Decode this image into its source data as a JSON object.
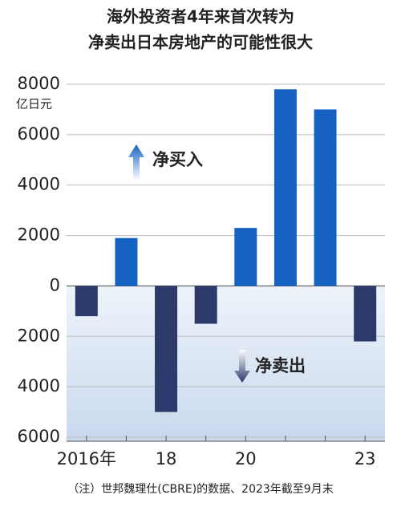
{
  "chart_data": {
    "type": "bar",
    "title": [
      "海外投资者4年来首次转为",
      "净卖出日本房地产的可能性很大"
    ],
    "y_unit": "亿日元",
    "categories": [
      "2016年",
      null,
      "18",
      null,
      "20",
      null,
      null,
      "23"
    ],
    "values": [
      -1200,
      1900,
      -5000,
      -1500,
      2300,
      7800,
      7000,
      -2200
    ],
    "colors": [
      "#2b3a6b",
      "#1662c2",
      "#2b3a6b",
      "#2b3a6b",
      "#1662c2",
      "#1662c2",
      "#1662c2",
      "#2b3a6b"
    ],
    "ylim": [
      -6000,
      8000
    ],
    "yticks": [
      {
        "value": -6000,
        "label": "6000"
      },
      {
        "value": -4000,
        "label": "4000"
      },
      {
        "value": -2000,
        "label": "2000"
      },
      0,
      2000,
      4000,
      6000,
      8000
    ],
    "grid": true,
    "annotations": [
      "净买入",
      "净卖出"
    ],
    "note": "（注）世邦魏理仕(CBRE)的数据、2023年截至9月末"
  }
}
